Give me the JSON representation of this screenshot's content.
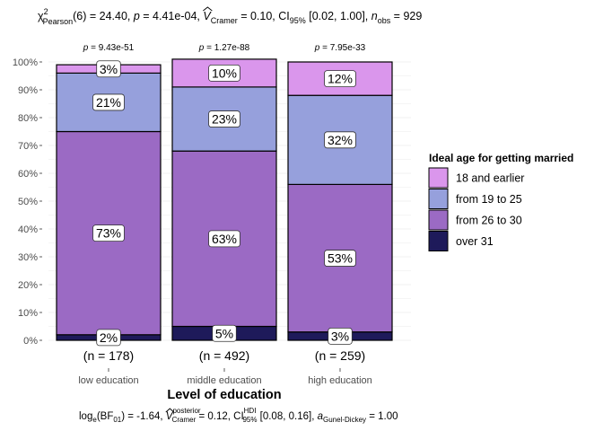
{
  "chart_data": {
    "type": "bar",
    "stacked": true,
    "percent": true,
    "title_parts": {
      "chi": "χ",
      "chi_sup": "2",
      "chi_sub": "Pearson",
      "stat": "(6) = 24.40, ",
      "p_label": "p",
      "p_value": " = 4.41e-04, ",
      "v_label": "V",
      "v_sub": "Cramer",
      "v_value": " = 0.10, CI",
      "ci_sub": "95%",
      "ci_value": " [0.02, 1.00], ",
      "n_label": "n",
      "n_sub": "obs",
      "n_value": " = 929"
    },
    "caption_parts": {
      "log": "log",
      "log_sub": "e",
      "bf": "(BF",
      "bf_sub": "01",
      "bf_value": ") = -1.64, ",
      "v_label": "V",
      "v_sup": "posterior",
      "v_sub": "Cramer",
      "v_value": " = 0.12, CI",
      "ci_sup": "HDI",
      "ci_sub": "95%",
      "ci_value": " [0.08, 0.16], ",
      "a_label": "a",
      "a_sub": "Gunel-Dickey",
      "a_value": " = 1.00"
    },
    "xlabel": "Level of education",
    "ylabel": "",
    "ylim": [
      0,
      100
    ],
    "yticks": [
      "0%",
      "10%",
      "20%",
      "30%",
      "40%",
      "50%",
      "60%",
      "70%",
      "80%",
      "90%",
      "100%"
    ],
    "categories": [
      "low education",
      "middle education",
      "high education"
    ],
    "counts": [
      "(n = 178)",
      "(n = 492)",
      "(n = 259)"
    ],
    "pvalues": [
      "= 9.43e-51",
      "= 1.27e-88",
      "= 7.95e-33"
    ],
    "p_label": "p",
    "legend_title": "Ideal age for getting married",
    "legend_position": "right",
    "series": [
      {
        "name": "over 31",
        "color": "#1e1a5a",
        "values": [
          2,
          5,
          3
        ]
      },
      {
        "name": "from 26 to 30",
        "color": "#9b6ac4",
        "values": [
          73,
          63,
          53
        ]
      },
      {
        "name": "from 19 to 25",
        "color": "#96a0dc",
        "values": [
          21,
          23,
          32
        ]
      },
      {
        "name": "18 and earlier",
        "color": "#da96ec",
        "values": [
          3,
          10,
          12
        ]
      }
    ],
    "legend_order": [
      "18 and earlier",
      "from 19 to 25",
      "from 26 to 30",
      "over 31"
    ],
    "label_suffix": "%",
    "grid": true
  }
}
